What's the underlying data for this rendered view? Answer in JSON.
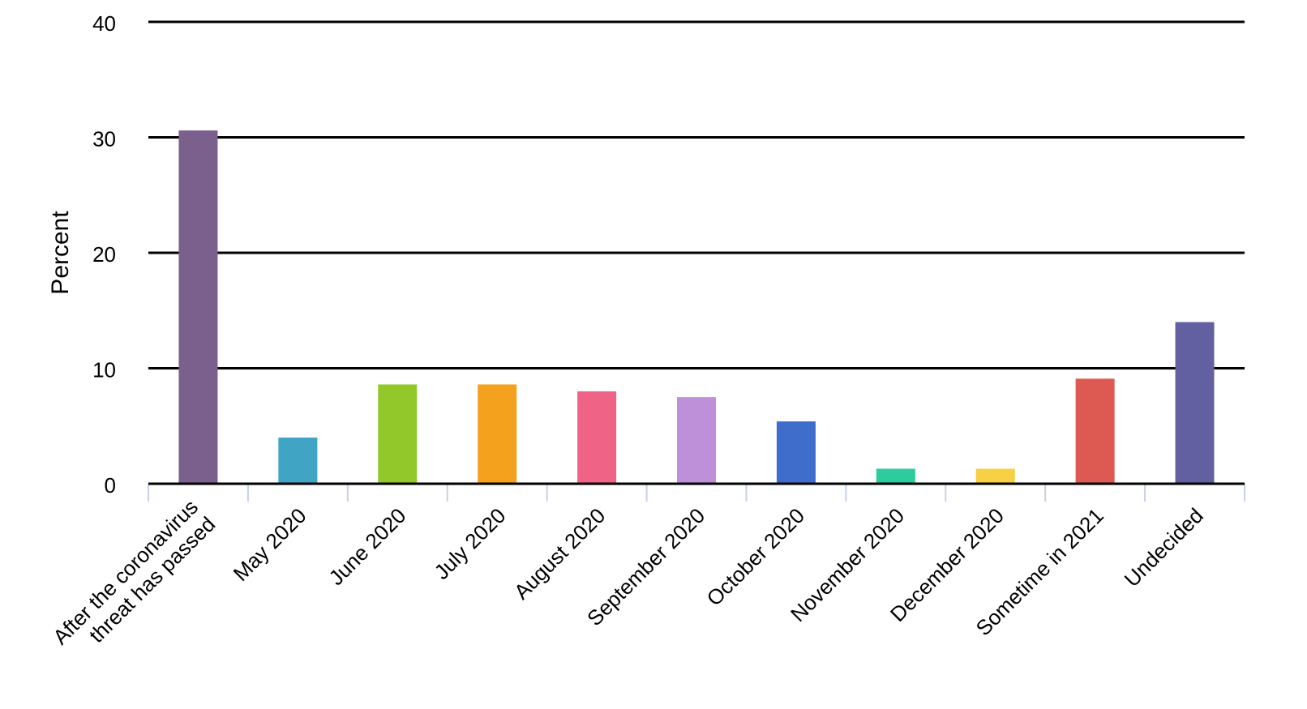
{
  "chart_data": {
    "type": "bar",
    "title": "",
    "xlabel": "",
    "ylabel": "Percent",
    "ylim": [
      0,
      40
    ],
    "yticks": [
      0,
      10,
      20,
      30,
      40
    ],
    "grid": true,
    "legend": "none",
    "categories": [
      [
        "After the coronavirus",
        "threat has passed"
      ],
      [
        "May 2020"
      ],
      [
        "June 2020"
      ],
      [
        "July 2020"
      ],
      [
        "August 2020"
      ],
      [
        "September 2020"
      ],
      [
        "October 2020"
      ],
      [
        "November 2020"
      ],
      [
        "December 2020"
      ],
      [
        "Sometime in 2021"
      ],
      [
        "Undecided"
      ]
    ],
    "values": [
      30.6,
      4.0,
      8.6,
      8.6,
      8.0,
      7.5,
      5.4,
      1.3,
      1.3,
      9.1,
      14.0
    ],
    "colors": [
      "#7b5f8d",
      "#40a4c4",
      "#93c82a",
      "#f4a11d",
      "#ef6486",
      "#bf90da",
      "#3f6dcc",
      "#2ccc9e",
      "#f7d044",
      "#dd5a53",
      "#6260a0"
    ],
    "gridline_color": "#000000",
    "tick_mark_color": "#c7d1e6"
  }
}
